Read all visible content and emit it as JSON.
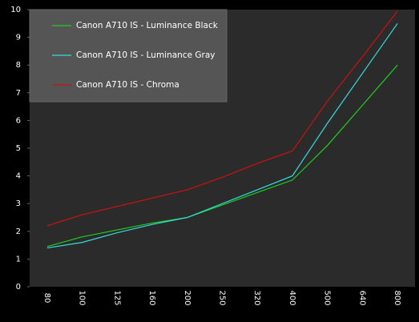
{
  "chart_data": {
    "type": "line",
    "categories": [
      "80",
      "100",
      "125",
      "160",
      "200",
      "250",
      "320",
      "400",
      "500",
      "640",
      "800"
    ],
    "series": [
      {
        "name": "Canon A710 IS - Luminance Black",
        "color": "#22cc22",
        "values": [
          1.45,
          1.8,
          2.05,
          2.3,
          2.5,
          2.95,
          3.4,
          3.85,
          5.1,
          6.55,
          8.0
        ]
      },
      {
        "name": "Canon A710 IS - Luminance Gray",
        "color": "#33dddd",
        "values": [
          1.4,
          1.6,
          1.95,
          2.25,
          2.5,
          3.0,
          3.5,
          4.0,
          5.9,
          7.7,
          9.5
        ]
      },
      {
        "name": "Canon A710 IS - Chroma",
        "color": "#cc1111",
        "values": [
          2.2,
          2.6,
          2.9,
          3.2,
          3.5,
          3.95,
          4.45,
          4.9,
          6.7,
          8.3,
          9.95
        ]
      }
    ],
    "ylim": [
      0,
      10
    ],
    "yticks": [
      0,
      1,
      2,
      3,
      4,
      5,
      6,
      7,
      8,
      9,
      10
    ],
    "legend": "upper-left"
  }
}
